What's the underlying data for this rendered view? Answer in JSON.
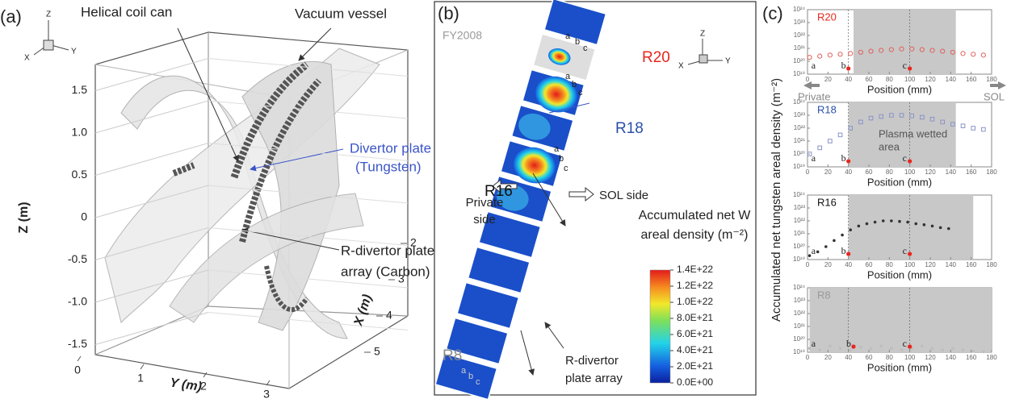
{
  "panel_a": {
    "label": "(a)",
    "callouts": [
      "Helical coil can",
      "Vacuum vessel",
      "Divertor plate",
      "(Tungsten)",
      "R-divertor plate",
      "array (Carbon)"
    ],
    "triad": [
      "Z",
      "Y",
      "X"
    ],
    "z_label": "Z (m)",
    "y_label": "Y (m)",
    "x_label": "X (m)",
    "zticks": [
      1.5,
      {
        "value": 1,
        "label": "1.0"
      },
      0.5,
      0,
      -0.5,
      {
        "value": -1,
        "label": "-1.0"
      },
      -1.5
    ],
    "yticks": [
      0,
      1,
      2,
      3
    ],
    "xticks": [
      2,
      3,
      4,
      5
    ]
  },
  "panel_b": {
    "label": "(b)",
    "year": "FY2008",
    "regions": [
      {
        "name": "R20",
        "color": "#e8261e",
        "marks": [
          "a",
          "b",
          "c"
        ]
      },
      {
        "name": "R18",
        "color": "#2a4fa8",
        "marks": [
          "a",
          "b",
          "c"
        ]
      },
      {
        "name": "R16",
        "color": "#111111",
        "marks": [
          "a",
          "b",
          "c"
        ]
      },
      {
        "name": "R8",
        "color": "#8a8a8a",
        "marks": [
          "a",
          "b",
          "c"
        ]
      }
    ],
    "colorbar_title": [
      "Accumulated net W",
      "areal density (m⁻²)"
    ],
    "colorbar_ticks": [
      {
        "value": 1.4e+22,
        "label": "1.4E+22"
      },
      {
        "value": 1.2e+22,
        "label": "1.2E+22"
      },
      {
        "value": 1e+22,
        "label": "1.0E+22"
      },
      {
        "value": 8e+21,
        "label": "8.0E+21"
      },
      {
        "value": 6e+21,
        "label": "6.0E+21"
      },
      {
        "value": 4e+21,
        "label": "4.0E+21"
      },
      {
        "value": 2e+21,
        "label": "2.0E+21"
      },
      {
        "value": 0,
        "label": "0.0E+00"
      }
    ],
    "colorbar_lim": [
      0,
      1.4e+22
    ],
    "notes": [
      "Private",
      "side",
      "SOL side",
      "R-divertor",
      "plate array"
    ],
    "triad": [
      "Z",
      "Y",
      "X"
    ]
  },
  "panel_c": {
    "label": "(c)",
    "ylabel": "Accumulated net tungsten areal density (m⁻²)",
    "charts": [
      {
        "type": "scatter",
        "title": "R20",
        "title_color": "#e8261e",
        "xlabel": "Position (mm)",
        "xlim": [
          0,
          180
        ],
        "xticks": [
          0,
          20,
          40,
          60,
          80,
          100,
          120,
          140,
          160,
          180
        ],
        "ylim": [
          1e+19,
          1e+24
        ],
        "log_y": true,
        "yticks": [
          {
            "value": 1e+19,
            "label": "10¹⁹"
          },
          {
            "value": 1e+20,
            "label": "10²⁰"
          },
          {
            "value": 1e+21,
            "label": "10²¹"
          },
          {
            "value": 1e+22,
            "label": "10²²"
          },
          {
            "value": 1e+23,
            "label": "10²³"
          },
          {
            "value": 1e+24,
            "label": "10²⁴"
          }
        ],
        "shaded": [
          45,
          145
        ],
        "guides": [
          40,
          100
        ],
        "series": [
          {
            "color": "#e0605a",
            "marker": "open-circle",
            "x": [
              2,
              12,
              22,
              32,
              42,
              52,
              62,
              72,
              82,
              92,
              102,
              112,
              122,
              132,
              142,
              152,
              162,
              172
            ],
            "values": [
              2e+20,
              2.5e+20,
              3e+20,
              3.5e+20,
              4e+20,
              5e+20,
              6e+20,
              7e+20,
              8e+20,
              9e+20,
              9e+20,
              8e+20,
              7e+20,
              6e+20,
              5e+20,
              4e+20,
              3.5e+20,
              3e+20
            ]
          }
        ],
        "points": [
          {
            "label": "a",
            "x": 3,
            "dot": false
          },
          {
            "label": "b",
            "x": 40,
            "dot": true
          },
          {
            "label": "c",
            "x": 100,
            "dot": true
          }
        ],
        "sides": [
          "Private",
          "SOL"
        ]
      },
      {
        "type": "scatter",
        "title": "R18",
        "title_color": "#2a4fa8",
        "xlabel": "Position (mm)",
        "xlim": [
          0,
          180
        ],
        "xticks": [
          0,
          20,
          40,
          60,
          80,
          100,
          120,
          140,
          160,
          180
        ],
        "ylim": [
          1e+19,
          1e+24
        ],
        "log_y": true,
        "yticks": [
          {
            "value": 1e+19,
            "label": "10¹⁹"
          },
          {
            "value": 1e+20,
            "label": "10²⁰"
          },
          {
            "value": 1e+21,
            "label": "10²¹"
          },
          {
            "value": 1e+22,
            "label": "10²²"
          },
          {
            "value": 1e+23,
            "label": "10²³"
          },
          {
            "value": 1e+24,
            "label": "10²⁴"
          }
        ],
        "shaded": [
          40,
          145
        ],
        "guides": [
          40,
          100
        ],
        "series": [
          {
            "color": "#8a93c8",
            "marker": "open-square",
            "x": [
              2,
              12,
              22,
              32,
              42,
              52,
              62,
              72,
              82,
              92,
              102,
              112,
              122,
              132,
              142,
              152,
              162,
              172
            ],
            "values": [
              1e+20,
              3e+20,
              1e+21,
              3e+21,
              1e+22,
              3e+22,
              6e+22,
              8e+22,
              1e+23,
              1e+23,
              9e+22,
              7e+22,
              5e+22,
              3e+22,
              2e+22,
              1.5e+22,
              1e+22,
              8e+21
            ]
          }
        ],
        "points": [
          {
            "label": "a",
            "x": 3,
            "dot": false
          },
          {
            "label": "b",
            "x": 40,
            "dot": true
          },
          {
            "label": "c",
            "x": 100,
            "dot": true
          }
        ],
        "annotation": [
          "Plasma wetted",
          "area"
        ]
      },
      {
        "type": "scatter",
        "title": "R16",
        "title_color": "#111111",
        "xlabel": "Position (mm)",
        "xlim": [
          0,
          180
        ],
        "xticks": [
          0,
          20,
          40,
          60,
          80,
          100,
          120,
          140,
          160,
          180
        ],
        "ylim": [
          1e+19,
          1e+24
        ],
        "log_y": true,
        "yticks": [
          {
            "value": 1e+19,
            "label": "10¹⁹"
          },
          {
            "value": 1e+20,
            "label": "10²⁰"
          },
          {
            "value": 1e+21,
            "label": "10²¹"
          },
          {
            "value": 1e+22,
            "label": "10²²"
          },
          {
            "value": 1e+23,
            "label": "10²³"
          },
          {
            "value": 1e+24,
            "label": "10²⁴"
          }
        ],
        "shaded": [
          40,
          162
        ],
        "guides": [
          40,
          100
        ],
        "series": [
          {
            "color": "#333333",
            "marker": "dot",
            "x": [
              2,
              10,
              18,
              26,
              34,
              42,
              50,
              58,
              66,
              74,
              82,
              90,
              98,
              106,
              114,
              122,
              130,
              138
            ],
            "values": [
              2e+19,
              4e+19,
              1e+20,
              3e+20,
              8e+20,
              2e+21,
              4e+21,
              6e+21,
              8e+21,
              1e+22,
              1e+22,
              9e+21,
              8e+21,
              6e+21,
              5e+21,
              4e+21,
              3e+21,
              2.5e+21
            ]
          }
        ],
        "points": [
          {
            "label": "a",
            "x": 3,
            "dot": false
          },
          {
            "label": "b",
            "x": 40,
            "dot": true
          },
          {
            "label": "c",
            "x": 100,
            "dot": true
          }
        ]
      },
      {
        "type": "scatter",
        "title": "R8",
        "title_color": "#9a9a9a",
        "xlabel": "Position (mm)",
        "xlim": [
          0,
          180
        ],
        "xticks": [
          0,
          20,
          40,
          60,
          80,
          100,
          120,
          140,
          160,
          180
        ],
        "ylim": [
          1e+19,
          1e+24
        ],
        "log_y": true,
        "yticks": [
          {
            "value": 1e+19,
            "label": "10¹⁹"
          },
          {
            "value": 1e+20,
            "label": "10²⁰"
          },
          {
            "value": 1e+21,
            "label": "10²¹"
          },
          {
            "value": 1e+22,
            "label": "10²²"
          },
          {
            "value": 1e+23,
            "label": "10²³"
          },
          {
            "value": 1e+24,
            "label": "10²⁴"
          }
        ],
        "shaded": [
          2,
          180
        ],
        "guides": [
          40,
          100
        ],
        "series": [
          {
            "color": "#bdbdbd",
            "marker": "dot",
            "x": [
              2,
              12,
              22,
              32,
              42,
              52,
              62,
              72,
              82,
              92,
              102,
              112,
              122,
              132,
              142,
              152,
              162,
              172
            ],
            "values": [
              2e+19,
              1.5e+19,
              3e+19,
              2e+19,
              1.5e+19,
              2.5e+19,
              2e+19,
              3e+19,
              2e+19,
              1.5e+19,
              2e+19,
              3e+19,
              2e+19,
              1.5e+19,
              2e+19,
              1.5e+19,
              1.2e+19,
              1.1e+19
            ]
          }
        ],
        "points": [
          {
            "label": "a",
            "x": 3,
            "dot": false
          },
          {
            "label": "b",
            "x": 45,
            "dot": true
          },
          {
            "label": "c",
            "x": 100,
            "dot": true
          }
        ]
      }
    ]
  }
}
